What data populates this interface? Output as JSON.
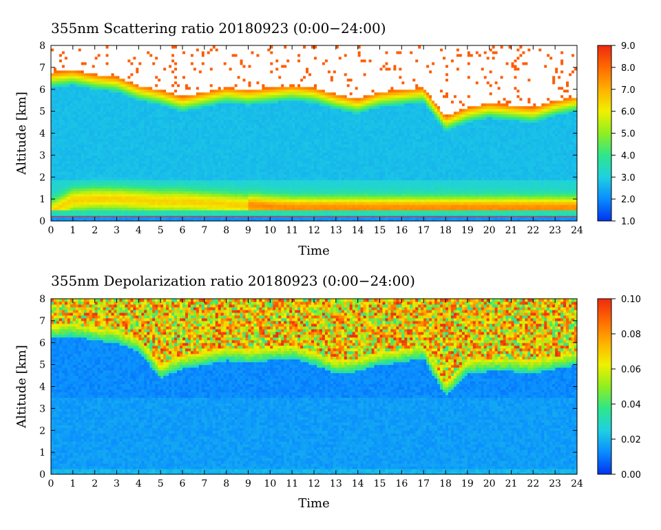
{
  "chart_data": [
    {
      "type": "heatmap",
      "title": "355nm Scattering ratio  20180923 (0:00−24:00)",
      "xlabel": "Time",
      "ylabel": "Altitude [km]",
      "xlim": [
        0,
        24
      ],
      "ylim": [
        0,
        8
      ],
      "x_ticks": [
        "0",
        "1",
        "2",
        "3",
        "4",
        "5",
        "6",
        "7",
        "8",
        "9",
        "10",
        "11",
        "12",
        "13",
        "14",
        "15",
        "16",
        "17",
        "18",
        "19",
        "20",
        "21",
        "22",
        "23",
        "24"
      ],
      "y_ticks": [
        "0",
        "1",
        "2",
        "3",
        "4",
        "5",
        "6",
        "7",
        "8"
      ],
      "colorbar": {
        "min": 1.0,
        "max": 9.0,
        "ticks": [
          "1.0",
          "2.0",
          "3.0",
          "4.0",
          "5.0",
          "6.0",
          "7.0",
          "8.0",
          "9.0"
        ],
        "saturated_color": "#ffffff"
      },
      "features": {
        "cloud_base_km": [
          6.8,
          6.9,
          6.7,
          6.6,
          6.2,
          6.0,
          5.7,
          5.9,
          6.1,
          6.0,
          6.1,
          6.2,
          6.1,
          5.8,
          5.6,
          5.9,
          6.0,
          6.1,
          4.8,
          5.2,
          5.4,
          5.3,
          5.2,
          5.5,
          5.7
        ],
        "boundary_layer_peak_km": [
          0.7,
          1.6,
          1.7,
          1.7,
          1.6,
          1.5,
          1.5,
          1.4,
          1.3,
          1.2,
          1.1,
          1.0,
          1.0,
          1.0,
          1.0,
          1.0,
          1.0,
          1.0,
          1.0,
          1.0,
          1.0,
          1.0,
          1.0,
          1.0,
          1.0
        ]
      }
    },
    {
      "type": "heatmap",
      "title": "355nm Depolarization ratio  20180923 (0:00−24:00)",
      "xlabel": "Time",
      "ylabel": "Altitude [km]",
      "xlim": [
        0,
        24
      ],
      "ylim": [
        0,
        8
      ],
      "x_ticks": [
        "0",
        "1",
        "2",
        "3",
        "4",
        "5",
        "6",
        "7",
        "8",
        "9",
        "10",
        "11",
        "12",
        "13",
        "14",
        "15",
        "16",
        "17",
        "18",
        "19",
        "20",
        "21",
        "22",
        "23",
        "24"
      ],
      "y_ticks": [
        "0",
        "1",
        "2",
        "3",
        "4",
        "5",
        "6",
        "7",
        "8"
      ],
      "colorbar": {
        "min": 0.0,
        "max": 0.1,
        "ticks": [
          "0.00",
          "0.02",
          "0.04",
          "0.06",
          "0.08",
          "0.10"
        ]
      },
      "features": {
        "cloud_base_km": [
          6.8,
          6.9,
          6.7,
          6.6,
          6.2,
          5.0,
          5.4,
          5.6,
          5.8,
          5.7,
          5.8,
          5.9,
          5.6,
          5.2,
          5.3,
          5.6,
          5.7,
          5.9,
          4.2,
          5.2,
          5.3,
          5.3,
          5.2,
          5.4,
          5.6
        ]
      }
    }
  ],
  "colors": {
    "scale": [
      "#0033ee",
      "#0a8cff",
      "#1fd0e0",
      "#2ee68a",
      "#90ee20",
      "#f0f000",
      "#ffb000",
      "#ff6a00",
      "#ee2a10"
    ],
    "cloud_saturated": "#ffffff",
    "ground_line": "#ee3322"
  }
}
